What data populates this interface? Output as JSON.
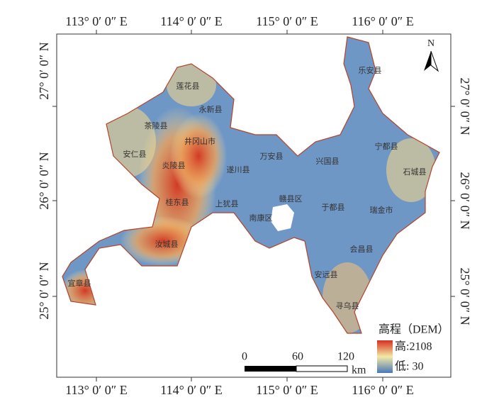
{
  "map": {
    "lon_labels": [
      "113° 0′ 0″ E",
      "114° 0′ 0″ E",
      "115° 0′ 0″ E",
      "116° 0′ 0″ E"
    ],
    "lat_labels": [
      "27° 0′ 0″ N",
      "26° 0′ 0″ N",
      "25° 0′ 0″ N"
    ],
    "counties": [
      "乐安县",
      "莲花县",
      "永新县",
      "茶陵县",
      "井冈山市",
      "安仁县",
      "炎陵县",
      "遂川县",
      "万安县",
      "兴国县",
      "宁都县",
      "石城县",
      "赣县区",
      "于都县",
      "瑞金市",
      "桂东县",
      "上犹县",
      "南康区",
      "汝城县",
      "会昌县",
      "安远县",
      "寻乌县",
      "宜章县"
    ],
    "north": "N",
    "scale": {
      "labels": [
        "0",
        "60",
        "120"
      ],
      "unit": "km"
    },
    "legend": {
      "title": "高程（DEM）",
      "high": "高:2108",
      "low": "低: 30"
    }
  }
}
